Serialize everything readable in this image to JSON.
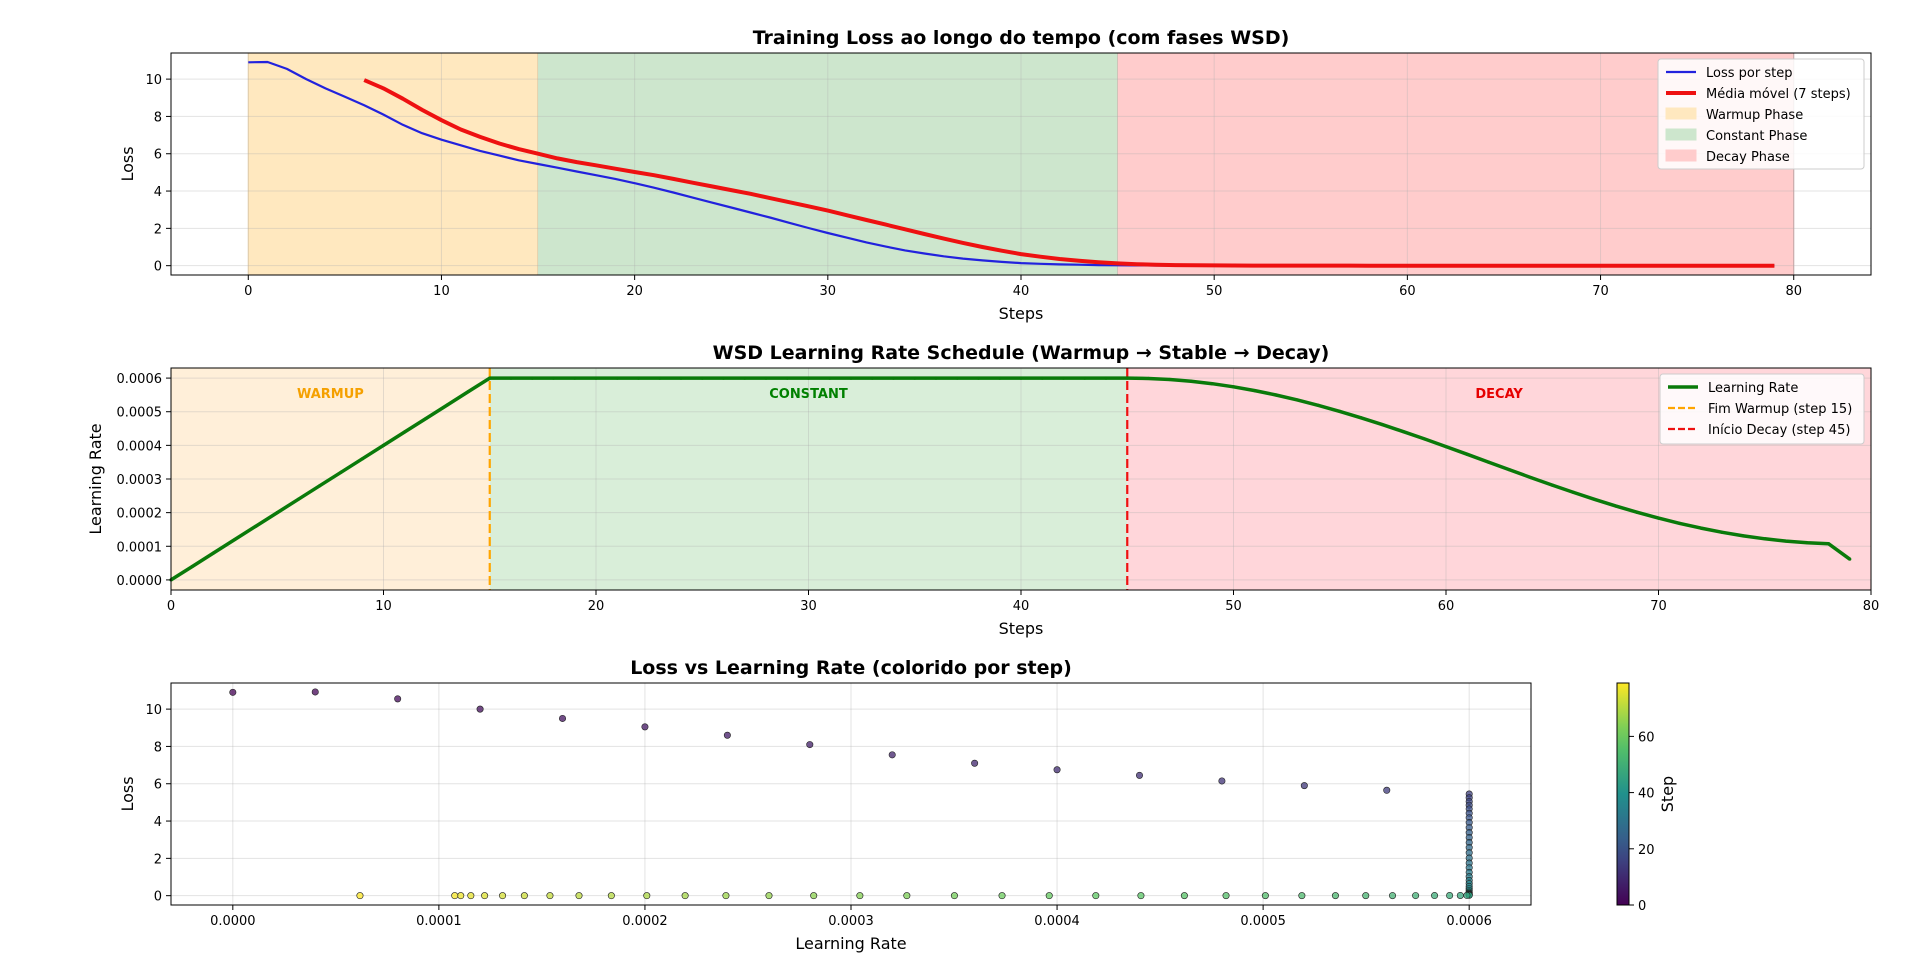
{
  "chart_data": [
    {
      "type": "line",
      "title": "Training Loss ao longo do tempo (com fases WSD)",
      "xlabel": "Steps",
      "ylabel": "Loss",
      "xlim": [
        -4,
        84
      ],
      "ylim": [
        -0.5,
        11.4
      ],
      "xticks": [
        0,
        10,
        20,
        30,
        40,
        50,
        60,
        70,
        80
      ],
      "yticks": [
        0,
        2,
        4,
        6,
        8,
        10
      ],
      "grid": true,
      "legend_position": "top-right",
      "phases": [
        {
          "label": "Warmup Phase",
          "start": 0,
          "end": 15,
          "color": "#ffe8bf"
        },
        {
          "label": "Constant Phase",
          "start": 15,
          "end": 45,
          "color": "#cde6cd"
        },
        {
          "label": "Decay Phase",
          "start": 45,
          "end": 80,
          "color": "#ffcccc"
        }
      ],
      "series": [
        {
          "name": "Loss por step",
          "color": "#2222dd",
          "x": [
            0,
            1,
            2,
            3,
            4,
            5,
            6,
            7,
            8,
            9,
            10,
            11,
            12,
            13,
            14,
            15,
            16,
            17,
            18,
            19,
            20,
            21,
            22,
            23,
            24,
            25,
            26,
            27,
            28,
            29,
            30,
            31,
            32,
            33,
            34,
            35,
            36,
            37,
            38,
            39,
            40,
            41,
            42,
            43,
            44,
            45,
            46,
            47,
            48,
            49,
            50,
            51,
            52,
            53,
            54,
            55,
            56,
            57,
            58,
            59,
            60,
            61,
            62,
            63,
            64,
            65,
            66,
            67,
            68,
            69,
            70,
            71,
            72,
            73,
            74,
            75,
            76,
            77,
            78,
            79
          ],
          "y": [
            10.9,
            10.92,
            10.55,
            10.0,
            9.5,
            9.05,
            8.6,
            8.1,
            7.55,
            7.1,
            6.75,
            6.45,
            6.15,
            5.9,
            5.65,
            5.45,
            5.25,
            5.05,
            4.85,
            4.65,
            4.42,
            4.18,
            3.92,
            3.65,
            3.38,
            3.12,
            2.85,
            2.58,
            2.3,
            2.02,
            1.75,
            1.5,
            1.25,
            1.02,
            0.82,
            0.65,
            0.5,
            0.38,
            0.28,
            0.2,
            0.14,
            0.1,
            0.07,
            0.05,
            0.03,
            0.02,
            0.015,
            0.01,
            0.008,
            0.006,
            0.005,
            0.004,
            0.003,
            0.003,
            0.002,
            0.002,
            0.002,
            0.002,
            0.001,
            0.001,
            0.001,
            0.001,
            0.001,
            0.001,
            0.001,
            0.001,
            0.001,
            0.001,
            0.001,
            0.001,
            0.001,
            0.001,
            0.001,
            0.001,
            0.001,
            0.001,
            0.001,
            0.001,
            0.001,
            0.001
          ]
        },
        {
          "name": "Média móvel (7 steps)",
          "color": "#ee1111",
          "x": [
            6,
            7,
            8,
            9,
            10,
            11,
            12,
            13,
            14,
            15,
            16,
            17,
            18,
            19,
            20,
            21,
            22,
            23,
            24,
            25,
            26,
            27,
            28,
            29,
            30,
            31,
            32,
            33,
            34,
            35,
            36,
            37,
            38,
            39,
            40,
            41,
            42,
            43,
            44,
            45,
            46,
            47,
            48,
            49,
            50,
            51,
            52,
            53,
            54,
            55,
            56,
            57,
            58,
            59,
            60,
            61,
            62,
            63,
            64,
            65,
            66,
            67,
            68,
            69,
            70,
            71,
            72,
            73,
            74,
            75,
            76,
            77,
            78,
            79
          ],
          "y": [
            9.95,
            9.5,
            8.95,
            8.35,
            7.8,
            7.3,
            6.9,
            6.55,
            6.25,
            6.0,
            5.75,
            5.55,
            5.38,
            5.2,
            5.02,
            4.85,
            4.65,
            4.45,
            4.25,
            4.05,
            3.85,
            3.62,
            3.4,
            3.18,
            2.95,
            2.7,
            2.45,
            2.2,
            1.95,
            1.7,
            1.45,
            1.22,
            1.0,
            0.8,
            0.62,
            0.48,
            0.36,
            0.26,
            0.18,
            0.12,
            0.08,
            0.05,
            0.03,
            0.02,
            0.012,
            0.008,
            0.005,
            0.004,
            0.003,
            0.002,
            0.002,
            0.002,
            0.001,
            0.001,
            0.001,
            0.001,
            0.001,
            0.001,
            0.001,
            0.001,
            0.001,
            0.001,
            0.001,
            0.001,
            0.001,
            0.001,
            0.001,
            0.001,
            0.001,
            0.001,
            0.001,
            0.001,
            0.001,
            0.001
          ]
        }
      ]
    },
    {
      "type": "line",
      "title": "WSD Learning Rate Schedule (Warmup → Stable → Decay)",
      "xlabel": "Steps",
      "ylabel": "Learning Rate",
      "xlim": [
        0,
        80
      ],
      "ylim": [
        -3e-05,
        0.00063
      ],
      "xticks": [
        0,
        10,
        20,
        30,
        40,
        50,
        60,
        70,
        80
      ],
      "yticks": [
        0.0,
        0.0001,
        0.0002,
        0.0003,
        0.0004,
        0.0005,
        0.0006
      ],
      "ytick_labels": [
        "0.0000",
        "0.0001",
        "0.0002",
        "0.0003",
        "0.0004",
        "0.0005",
        "0.0006"
      ],
      "grid": true,
      "legend_position": "top-right",
      "phases": [
        {
          "label": "WARMUP",
          "start": 0,
          "end": 15,
          "color": "#ffefd9",
          "text_color": "#f5a000",
          "label_x": 7.5
        },
        {
          "label": "CONSTANT",
          "start": 15,
          "end": 45,
          "color": "#d9eed9",
          "text_color": "#008000",
          "label_x": 30
        },
        {
          "label": "DECAY",
          "start": 45,
          "end": 80,
          "color": "#ffd6da",
          "text_color": "#e60000",
          "label_x": 62.5
        }
      ],
      "vlines": [
        {
          "name": "Fim Warmup (step 15)",
          "x": 15,
          "color": "#ffa500"
        },
        {
          "name": "Início Decay (step 45)",
          "x": 45,
          "color": "#ee1111"
        }
      ],
      "series": [
        {
          "name": "Learning Rate",
          "color": "#0a7a0a",
          "x": [
            0,
            1,
            2,
            3,
            4,
            5,
            6,
            7,
            8,
            9,
            10,
            11,
            12,
            13,
            14,
            15,
            16,
            17,
            18,
            19,
            20,
            21,
            22,
            23,
            24,
            25,
            26,
            27,
            28,
            29,
            30,
            31,
            32,
            33,
            34,
            35,
            36,
            37,
            38,
            39,
            40,
            41,
            42,
            43,
            44,
            45,
            46,
            47,
            48,
            49,
            50,
            51,
            52,
            53,
            54,
            55,
            56,
            57,
            58,
            59,
            60,
            61,
            62,
            63,
            64,
            65,
            66,
            67,
            68,
            69,
            70,
            71,
            72,
            73,
            74,
            75,
            76,
            77,
            78,
            79
          ],
          "y": [
            0.0,
            4e-05,
            8e-05,
            0.00012,
            0.00016,
            0.0002,
            0.00024,
            0.00028,
            0.00032,
            0.00036,
            0.0004,
            0.00044,
            0.00048,
            0.00052,
            0.00056,
            0.0006,
            0.0006,
            0.0006,
            0.0006,
            0.0006,
            0.0006,
            0.0006,
            0.0006,
            0.0006,
            0.0006,
            0.0006,
            0.0006,
            0.0006,
            0.0006,
            0.0006,
            0.0006,
            0.0006,
            0.0006,
            0.0006,
            0.0006,
            0.0006,
            0.0006,
            0.0006,
            0.0006,
            0.0006,
            0.0006,
            0.0006,
            0.0006,
            0.0006,
            0.0006,
            0.0006,
            0.0005989,
            0.0005957,
            0.0005905,
            0.0005832,
            0.000574,
            0.0005628,
            0.0005498,
            0.0005351,
            0.0005188,
            0.0005011,
            0.000482,
            0.0004618,
            0.0004407,
            0.0004188,
            0.0003962,
            0.0003733,
            0.0003502,
            0.0003271,
            0.0003043,
            0.0002819,
            0.0002602,
            0.0002393,
            0.0002195,
            0.0002009,
            0.0001837,
            0.000168,
            0.0001539,
            0.0001415,
            0.0001309,
            0.0001222,
            0.0001155,
            0.0001106,
            0.0001077,
            6.17e-05
          ]
        }
      ]
    },
    {
      "type": "scatter",
      "title": "Loss vs Learning Rate (colorido por step)",
      "xlabel": "Learning Rate",
      "ylabel": "Loss",
      "xlim": [
        -3e-05,
        0.00063
      ],
      "ylim": [
        -0.5,
        11.4
      ],
      "xticks": [
        0.0,
        0.0001,
        0.0002,
        0.0003,
        0.0004,
        0.0005,
        0.0006
      ],
      "xtick_labels": [
        "0.0000",
        "0.0001",
        "0.0002",
        "0.0003",
        "0.0004",
        "0.0005",
        "0.0006"
      ],
      "yticks": [
        0,
        2,
        4,
        6,
        8,
        10
      ],
      "grid": true,
      "colorbar": {
        "label": "Step",
        "range": [
          0,
          79
        ],
        "ticks": [
          0,
          20,
          40,
          60
        ],
        "colormap": "viridis"
      },
      "points_note": "each point is (learning rate at step, loss at step), colored by step"
    }
  ]
}
